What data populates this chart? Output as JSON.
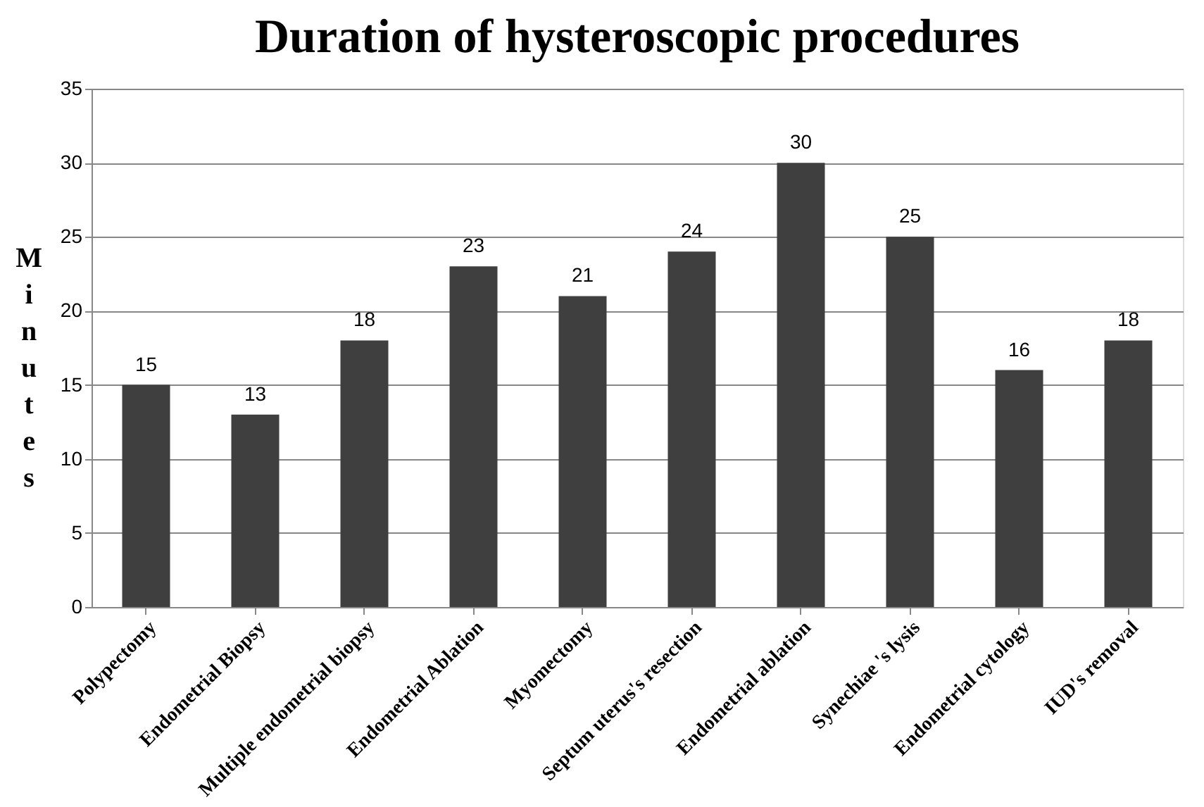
{
  "chart_data": {
    "type": "bar",
    "title": "Duration of hysteroscopic procedures",
    "ylabel": "Minutes",
    "categories": [
      "Polypectomy",
      "Endometrial Biopsy",
      "Multiple endometrial biopsy",
      "Endometrial Ablation",
      "Myomectomy",
      "Septum uterus's resection",
      "Endometrial ablation",
      "Synechiae 's lysis",
      "Endometrial cytology",
      "IUD's removal"
    ],
    "values": [
      15,
      13,
      18,
      23,
      21,
      24,
      30,
      25,
      16,
      18
    ],
    "color": "#3f3f3f",
    "ylim": [
      0,
      35
    ],
    "yticks": [
      0,
      5,
      10,
      15,
      20,
      25,
      30,
      35
    ],
    "grid": "y",
    "data_labels": true
  }
}
